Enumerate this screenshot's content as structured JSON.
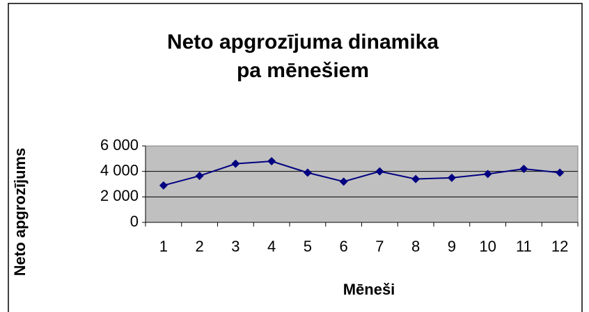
{
  "chart_data": {
    "type": "line",
    "title": [
      "Neto apgrozījuma dinamika",
      "pa mēnešiem"
    ],
    "x_label": "Mēneši",
    "y_label": "Neto apgrozījums",
    "categories": [
      "1",
      "2",
      "3",
      "4",
      "5",
      "6",
      "7",
      "8",
      "9",
      "10",
      "11",
      "12"
    ],
    "series": [
      {
        "name": "Neto apgrozījums",
        "color": "#000080",
        "values": [
          2900,
          3650,
          4600,
          4800,
          3900,
          3200,
          4000,
          3400,
          3500,
          3800,
          4200,
          3900
        ]
      }
    ],
    "ylim": [
      0,
      6000
    ],
    "yticks": [
      0,
      {
        "value": 2000,
        "label": "2 000"
      },
      {
        "value": 4000,
        "label": "4 000"
      },
      {
        "value": 6000,
        "label": "6 000"
      }
    ],
    "grid": true,
    "plot_background": "#c0c0c0"
  }
}
